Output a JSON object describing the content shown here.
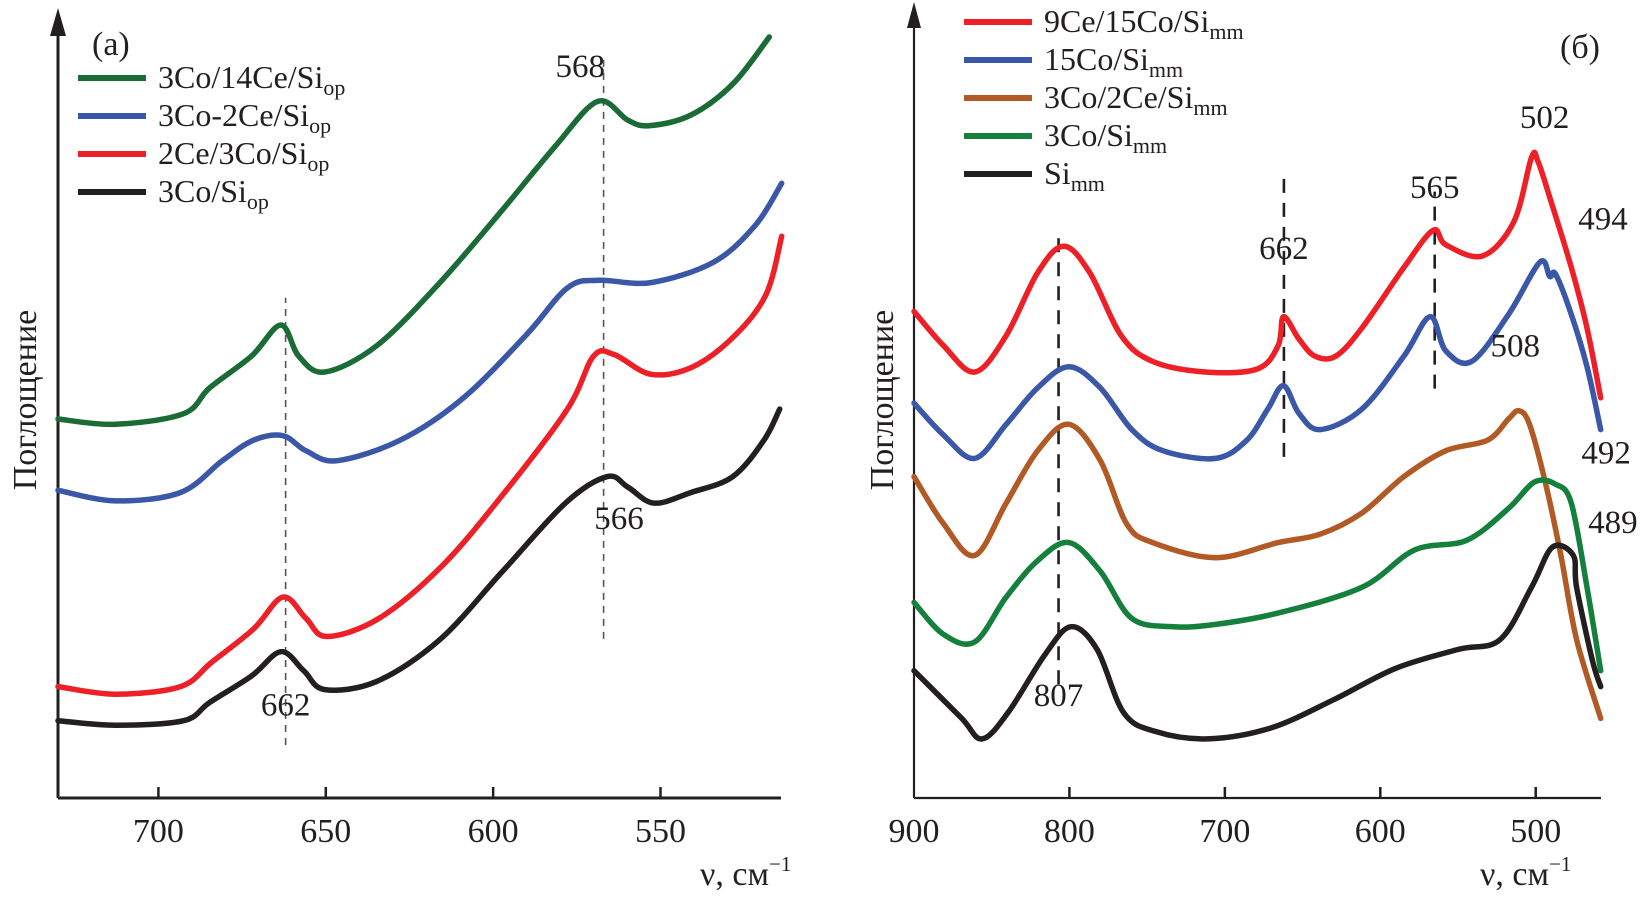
{
  "chart_data": [
    {
      "type": "line",
      "panel_label": "(a)",
      "title": "",
      "xlabel": "ν, см",
      "xlabel_sup": "−1",
      "ylabel": "Поглощение",
      "xlim": [
        730,
        514
      ],
      "ylim": [
        0,
        100
      ],
      "x_ticks": [
        700,
        650,
        600,
        550
      ],
      "grid": false,
      "legend_position": "top-left",
      "annotations": [
        {
          "text": "568",
          "x": 568,
          "series": "3Co/14Ce/Siop",
          "placement": "above-left"
        },
        {
          "text": "566",
          "x": 566,
          "series": "3Co/Siop",
          "placement": "below"
        },
        {
          "text": "662",
          "x": 662,
          "series": "3Co/Siop",
          "placement": "below"
        }
      ],
      "guides": [
        {
          "x": 662,
          "from": 7,
          "to": 66
        },
        {
          "x": 567,
          "from": 21,
          "to": 98
        }
      ],
      "series": [
        {
          "name": "3Co/14Ce/Si",
          "sub": "op",
          "color": "#1a6b35",
          "x": [
            730,
            712.8,
            692.5,
            684.7,
            672.2,
            663.4,
            658.1,
            650.3,
            634.7,
            615.9,
            597.2,
            581.6,
            568.8,
            559.7,
            553.4,
            540.9,
            528.4,
            517.5
          ],
          "y": [
            50.0,
            49.3,
            50.7,
            54.1,
            58.3,
            62.4,
            58.3,
            56.2,
            59.7,
            68.0,
            77.6,
            85.9,
            91.9,
            89.4,
            88.7,
            90.1,
            94.2,
            100.4
          ]
        },
        {
          "name": "3Co-2Ce/Si",
          "sub": "op",
          "color": "#3a57a8",
          "x": [
            730,
            712.8,
            693.4,
            680.9,
            671.6,
            662.8,
            655.9,
            646.6,
            627.8,
            609.1,
            590.3,
            577.8,
            568.4,
            552.8,
            534.1,
            521.6,
            513.8
          ],
          "y": [
            40.6,
            39.2,
            40.3,
            44.5,
            47.2,
            47.8,
            45.8,
            44.5,
            47.2,
            52.7,
            61.0,
            67.3,
            68.3,
            68.0,
            70.7,
            75.6,
            81.1
          ]
        },
        {
          "name": "2Ce/3Co/Si",
          "sub": "op",
          "color": "#ee2027",
          "x": [
            730,
            712.8,
            693.4,
            684.1,
            671.6,
            662.8,
            655.9,
            649.7,
            634.1,
            615.3,
            596.6,
            577.8,
            570,
            563.8,
            552.8,
            540.3,
            527.8,
            518.4,
            513.8
          ],
          "y": [
            14.7,
            13.7,
            14.7,
            17.9,
            22.3,
            26.5,
            23.7,
            21.3,
            23.7,
            30.6,
            40.3,
            51.3,
            58.3,
            58.5,
            55.9,
            56.9,
            61.0,
            66.5,
            74.1
          ]
        },
        {
          "name": "3Co/Si",
          "sub": "op",
          "color": "#231f20",
          "x": [
            730,
            712.8,
            692.5,
            684.7,
            672.2,
            663.4,
            656.6,
            650.3,
            634.7,
            615.9,
            597.2,
            578.4,
            565.9,
            559.7,
            551.9,
            540.9,
            528.4,
            519.1,
            514.4
          ],
          "y": [
            10.2,
            9.6,
            10.2,
            12.6,
            16.1,
            19.3,
            16.8,
            14.3,
            15.4,
            20.9,
            29.9,
            38.9,
            42.4,
            41.0,
            38.9,
            40.3,
            42.4,
            47.2,
            51.3
          ]
        }
      ]
    },
    {
      "type": "line",
      "panel_label": "(б)",
      "title": "",
      "xlabel": "ν, см",
      "xlabel_sup": "−1",
      "ylabel": "Поглощение",
      "xlim": [
        900,
        458
      ],
      "ylim": [
        0,
        100
      ],
      "x_ticks": [
        900,
        800,
        700,
        600,
        500
      ],
      "grid": false,
      "legend_position": "top-left",
      "annotations": [
        {
          "text": "807",
          "x": 807,
          "series": "Simm",
          "placement": "below"
        },
        {
          "text": "662",
          "x": 662,
          "series": "9Ce/15Co/Simm",
          "placement": "above"
        },
        {
          "text": "565",
          "x": 565,
          "series": "9Ce/15Co/Simm",
          "placement": "above"
        },
        {
          "text": "502",
          "x": 502,
          "series": "9Ce/15Co/Simm",
          "placement": "above"
        },
        {
          "text": "494",
          "x": 494,
          "series": "15Co/Simm",
          "placement": "right"
        },
        {
          "text": "508",
          "x": 508,
          "series": "3Co/2Ce/Simm",
          "placement": "above"
        },
        {
          "text": "492",
          "x": 492,
          "series": "3Co/Simm",
          "placement": "right"
        },
        {
          "text": "489",
          "x": 489,
          "series": "Simm",
          "placement": "right"
        }
      ],
      "guides": [
        {
          "x": 807,
          "from": 15,
          "to": 74
        },
        {
          "x": 662,
          "from": 45,
          "to": 82
        },
        {
          "x": 565,
          "from": 54,
          "to": 80
        }
      ],
      "series": [
        {
          "name": "9Ce/15Co/Si",
          "sub": "mm",
          "color": "#ee2027",
          "x": [
            900,
            881.1,
            860.9,
            840.7,
            820.5,
            803.7,
            786.9,
            766.7,
            746.5,
            712.8,
            679.1,
            665.7,
            662.2,
            652.2,
            642.1,
            628.6,
            611.8,
            584.8,
            566,
            557.9,
            534.3,
            514.1,
            502.7,
            498.6,
            490.6,
            477.1,
            467,
            458.2
          ],
          "y": [
            64.2,
            59.7,
            56.2,
            61.0,
            69.3,
            72.8,
            69.3,
            61.0,
            57.6,
            56.2,
            56.6,
            59.7,
            63.5,
            60.5,
            58.3,
            58.3,
            62.0,
            70.0,
            74.9,
            73.0,
            71.5,
            76.0,
            84.5,
            84.0,
            79.0,
            70.0,
            62.0,
            52.8
          ]
        },
        {
          "name": "15Co/Si",
          "sub": "mm",
          "color": "#3a57a8",
          "x": [
            900,
            881.1,
            860.9,
            840.7,
            820.5,
            800.3,
            780.1,
            759.9,
            739.7,
            706,
            685.9,
            672.4,
            662.3,
            652.2,
            638.7,
            611.8,
            584.8,
            568,
            557.9,
            541.1,
            517.5,
            497.3,
            491,
            487.2,
            477.1,
            467,
            458.2
          ],
          "y": [
            52.1,
            47.9,
            44.8,
            49.3,
            54.1,
            56.9,
            54.1,
            48.6,
            45.8,
            44.8,
            47.2,
            51.3,
            54.4,
            50.7,
            48.6,
            51.3,
            58.3,
            63.5,
            59.0,
            57.6,
            63.8,
            70.7,
            68.8,
            69.1,
            63.8,
            56.9,
            48.6
          ]
        },
        {
          "name": "3Co/2Ce/Si",
          "sub": "mm",
          "color": "#b25a26",
          "x": [
            900,
            881.1,
            860.9,
            840.7,
            820.5,
            800.3,
            780.1,
            763.3,
            746.5,
            706,
            665.7,
            638.7,
            611.8,
            584.8,
            557.9,
            531,
            517.5,
            510.8,
            504.0,
            493.9,
            483.8,
            473.7,
            458.2
          ],
          "y": [
            42.4,
            36.2,
            32.0,
            38.9,
            45.8,
            49.3,
            44.5,
            36.2,
            33.7,
            31.7,
            33.7,
            34.8,
            37.6,
            42.4,
            45.8,
            47.2,
            50.0,
            51.1,
            49.3,
            41.7,
            32.0,
            20.9,
            10.5
          ]
        },
        {
          "name": "3Co/Si",
          "sub": "mm",
          "color": "#14803c",
          "x": [
            900,
            881.1,
            860.9,
            840.7,
            820.5,
            800.3,
            780.1,
            759.9,
            733,
            706,
            665.7,
            611.8,
            578.1,
            544.4,
            517.5,
            500.7,
            487.2,
            477.1,
            467,
            458.2
          ],
          "y": [
            25.8,
            21.6,
            20.6,
            26.5,
            31.3,
            33.7,
            29.9,
            23.7,
            22.6,
            22.9,
            24.4,
            27.8,
            32.7,
            34.0,
            38.2,
            41.7,
            41.4,
            38.9,
            27.8,
            16.8
          ]
        },
        {
          "name": "Si",
          "sub": "mm",
          "color": "#231f20",
          "x": [
            900,
            869.7,
            856.2,
            839.4,
            815.8,
            799,
            782.2,
            765.3,
            745.1,
            711.4,
            671,
            630.6,
            590.2,
            549.8,
            522.9,
            502.7,
            489.2,
            475.8,
            473.7,
            463.6,
            458.2
          ],
          "y": [
            16.8,
            10.6,
            7.8,
            11.3,
            18.9,
            22.6,
            19.6,
            11.3,
            8.8,
            7.8,
            9.2,
            12.9,
            17.1,
            19.6,
            20.9,
            27.8,
            33.1,
            32.0,
            27.8,
            18.2,
            14.7
          ]
        }
      ]
    }
  ]
}
